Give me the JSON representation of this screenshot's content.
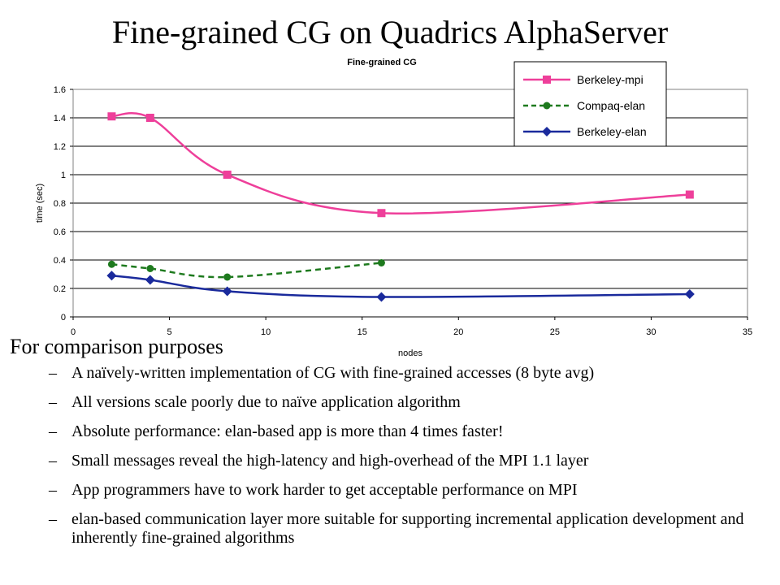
{
  "slide": {
    "title": "Fine-grained CG on Quadrics AlphaServer",
    "intro": "For comparison purposes",
    "bullets": [
      "A naïvely-written implementation of CG with fine-grained accesses (8 byte avg)",
      "All versions scale poorly due to naïve application algorithm",
      "Absolute performance: elan-based app is more than 4 times faster!",
      "Small messages reveal the high-latency and high-overhead of the MPI 1.1 layer",
      "App programmers have to work harder to get acceptable performance on MPI",
      "elan-based communication layer more suitable for supporting incremental application development and inherently fine-grained algorithms"
    ],
    "bullet_marker": "–"
  },
  "chart_data": {
    "type": "line",
    "title": "Fine-grained CG",
    "xlabel": "nodes",
    "ylabel": "time (sec)",
    "xlim": [
      0,
      35
    ],
    "ylim": [
      0,
      1.6
    ],
    "xticks": [
      0,
      5,
      10,
      15,
      20,
      25,
      30,
      35
    ],
    "yticks": [
      0,
      0.2,
      0.4,
      0.6,
      0.8,
      1,
      1.2,
      1.4,
      1.6
    ],
    "xtick_labels": [
      "0",
      "5",
      "10",
      "15",
      "20",
      "25",
      "30",
      "35"
    ],
    "ytick_labels": [
      "0",
      "0.2",
      "0.4",
      "0.6",
      "0.8",
      "1",
      "1.2",
      "1.4",
      "1.6"
    ],
    "grid": "horizontal",
    "legend_position": "top-right",
    "smoothed": true,
    "series": [
      {
        "name": "Berkeley-mpi",
        "color": "#ee3f9a",
        "marker": "square",
        "dash": "solid",
        "x": [
          2,
          4,
          8,
          16,
          32
        ],
        "y": [
          1.41,
          1.4,
          1.0,
          0.73,
          0.86
        ]
      },
      {
        "name": "Compaq-elan",
        "color": "#1e7a1e",
        "marker": "circle",
        "dash": "dashed",
        "x": [
          2,
          4,
          8,
          16
        ],
        "y": [
          0.37,
          0.34,
          0.28,
          0.38
        ]
      },
      {
        "name": "Berkeley-elan",
        "color": "#1a2a9c",
        "marker": "diamond",
        "dash": "solid",
        "x": [
          2,
          4,
          8,
          16,
          32
        ],
        "y": [
          0.29,
          0.26,
          0.18,
          0.14,
          0.16
        ]
      }
    ]
  }
}
